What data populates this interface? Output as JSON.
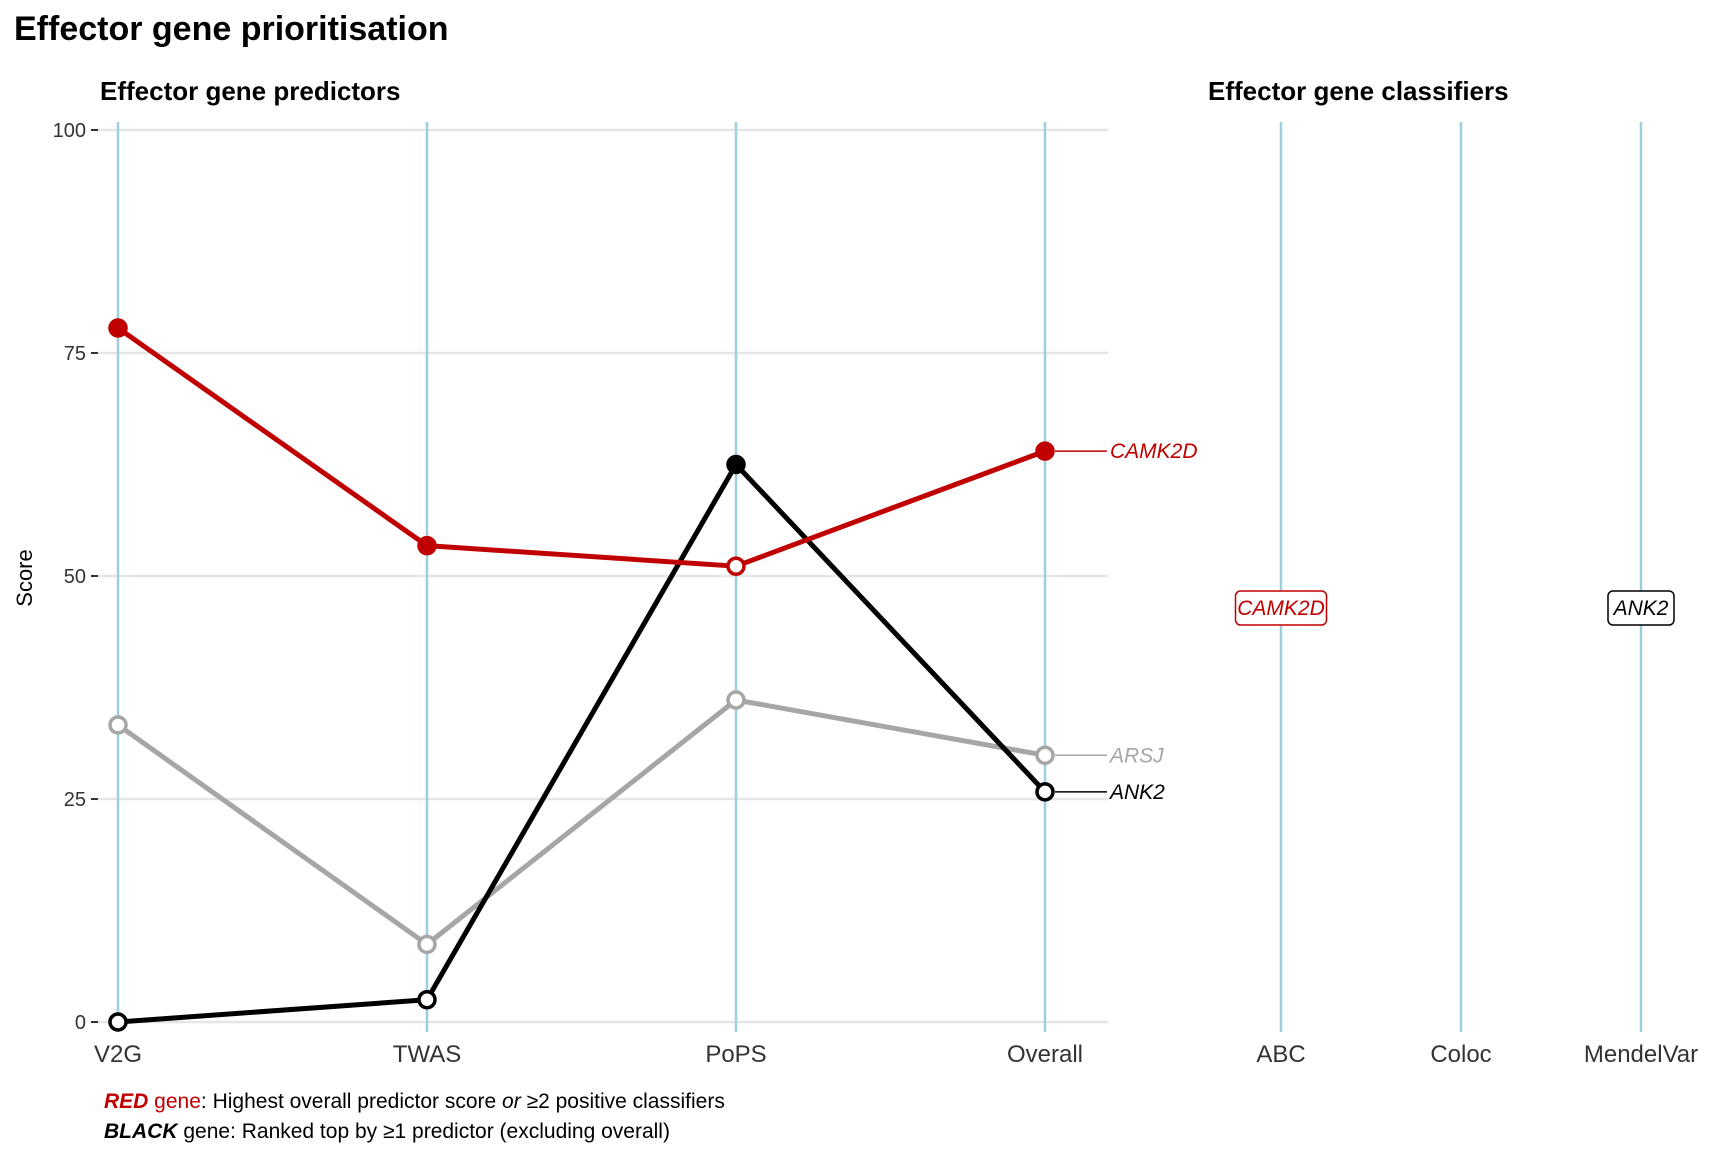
{
  "title": "Effector gene prioritisation",
  "caption": {
    "line1": {
      "lead": "RED",
      "gene": " gene",
      "rest": ": Highest overall predictor score ",
      "or": "or",
      "tail": " ≥2 positive classifiers"
    },
    "line2": {
      "lead": "BLACK",
      "rest": " gene: Ranked top by ≥1 predictor (excluding overall)"
    }
  },
  "colors": {
    "red": "#c00000",
    "black": "#000000",
    "grey": "#a6a6a6",
    "vline": "#9dcfdc",
    "grid": "#e6e6e6"
  },
  "chart_data": [
    {
      "type": "line",
      "title": "Effector gene predictors",
      "ylabel": "Score",
      "ylim": [
        0,
        100
      ],
      "yticks": [
        0,
        25,
        50,
        75,
        100
      ],
      "categories": [
        "V2G",
        "TWAS",
        "PoPS",
        "Overall"
      ],
      "grid": true,
      "series": [
        {
          "name": "ARSJ",
          "color": "#a6a6a6",
          "values": [
            33.3,
            8.7,
            36.1,
            29.9
          ],
          "filled": [
            false,
            false,
            false,
            false
          ]
        },
        {
          "name": "ANK2",
          "color": "#000000",
          "values": [
            0,
            2.5,
            62.5,
            25.8
          ],
          "filled": [
            false,
            false,
            true,
            false
          ]
        },
        {
          "name": "CAMK2D",
          "color": "#c00000",
          "values": [
            77.8,
            53.4,
            51.1,
            64.0
          ],
          "filled": [
            true,
            true,
            false,
            true
          ]
        }
      ]
    },
    {
      "type": "table",
      "title": "Effector gene classifiers",
      "categories": [
        "ABC",
        "Coloc",
        "MendelVar"
      ],
      "labels": [
        {
          "category": "ABC",
          "gene": "CAMK2D",
          "color": "#c00000"
        },
        {
          "category": "MendelVar",
          "gene": "ANK2",
          "color": "#000000"
        }
      ]
    }
  ]
}
